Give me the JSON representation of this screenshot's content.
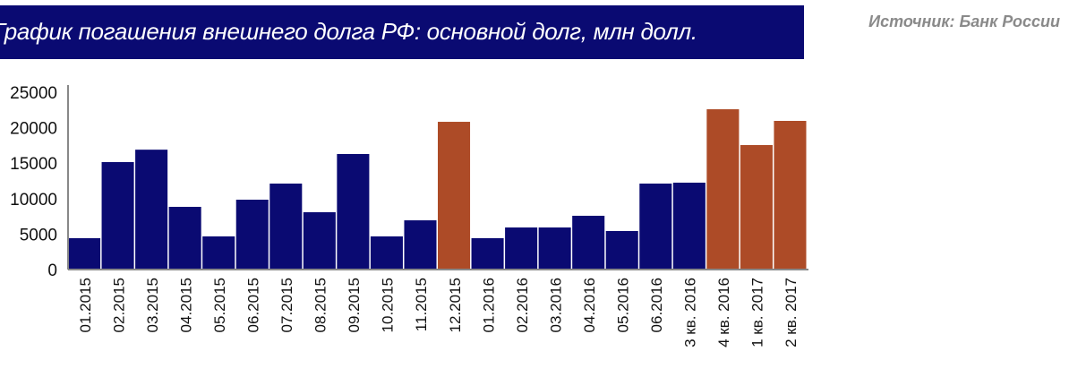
{
  "header": {
    "title": "График погашения внешнего долга РФ: основной долг, млн долл.",
    "source": "Источник: Банк России"
  },
  "colors": {
    "actual": "#0a0a72",
    "highlight": "#ad4b27",
    "title_bg": "#0a0a72"
  },
  "chart_data": {
    "type": "bar",
    "title": "График погашения внешнего долга РФ: основной долг, млн долл.",
    "xlabel": "",
    "ylabel": "",
    "ylim": [
      0,
      25000
    ],
    "yticks": [
      "0",
      "5000",
      "10000",
      "15000",
      "20000",
      "25000"
    ],
    "grid": false,
    "categories": [
      "01.2015",
      "02.2015",
      "03.2015",
      "04.2015",
      "05.2015",
      "06.2015",
      "07.2015",
      "08.2015",
      "09.2015",
      "10.2015",
      "11.2015",
      "12.2015",
      "01.2016",
      "02.2016",
      "03.2016",
      "04.2016",
      "05.2016",
      "06.2016",
      "3 кв. 2016",
      "4 кв. 2016",
      "1 кв. 2017",
      "2 кв. 2017"
    ],
    "values": [
      4420,
      15150,
      16900,
      8840,
      4670,
      9850,
      12120,
      8080,
      16290,
      4670,
      6940,
      20830,
      4420,
      5930,
      5930,
      7580,
      5430,
      12120,
      12250,
      22600,
      17550,
      20960
    ],
    "highlighted": [
      false,
      false,
      false,
      false,
      false,
      false,
      false,
      false,
      false,
      false,
      false,
      true,
      false,
      false,
      false,
      false,
      false,
      false,
      false,
      true,
      true,
      true
    ]
  }
}
